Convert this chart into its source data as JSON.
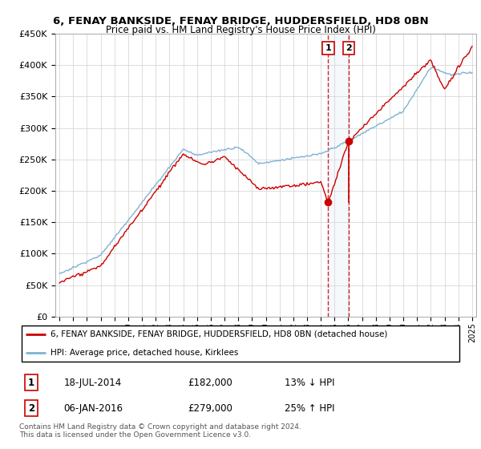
{
  "title": "6, FENAY BANKSIDE, FENAY BRIDGE, HUDDERSFIELD, HD8 0BN",
  "subtitle": "Price paid vs. HM Land Registry's House Price Index (HPI)",
  "red_label": "6, FENAY BANKSIDE, FENAY BRIDGE, HUDDERSFIELD, HD8 0BN (detached house)",
  "blue_label": "HPI: Average price, detached house, Kirklees",
  "transaction1_date": "18-JUL-2014",
  "transaction1_price": "£182,000",
  "transaction1_hpi": "13% ↓ HPI",
  "transaction1_year": 2014.54,
  "transaction1_value": 182000,
  "transaction2_date": "06-JAN-2016",
  "transaction2_price": "£279,000",
  "transaction2_hpi": "25% ↑ HPI",
  "transaction2_year": 2016.02,
  "transaction2_value": 279000,
  "footer1": "Contains HM Land Registry data © Crown copyright and database right 2024.",
  "footer2": "This data is licensed under the Open Government Licence v3.0.",
  "ylim": [
    0,
    450000
  ],
  "yticks": [
    0,
    50000,
    100000,
    150000,
    200000,
    250000,
    300000,
    350000,
    400000,
    450000
  ],
  "ytick_labels": [
    "£0",
    "£50K",
    "£100K",
    "£150K",
    "£200K",
    "£250K",
    "£300K",
    "£350K",
    "£400K",
    "£450K"
  ],
  "xlim_start": 1994.7,
  "xlim_end": 2025.3,
  "hpi_color": "#7fb3d3",
  "price_color": "#cc0000",
  "marker_color": "#cc0000",
  "vline_color": "#cc0000",
  "shade_color": "#ddeeff"
}
